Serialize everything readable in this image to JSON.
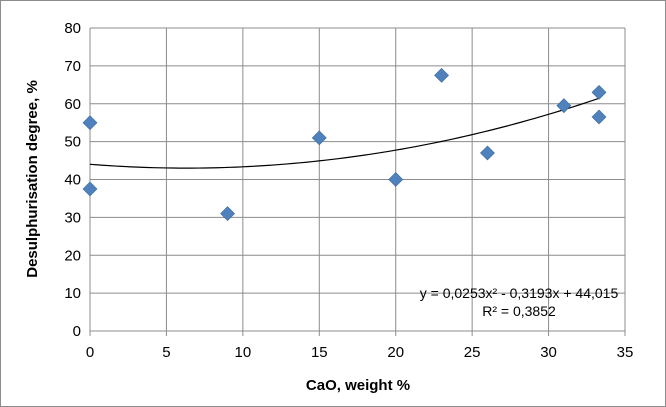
{
  "chart_data": {
    "type": "scatter",
    "xlabel": "CaO, weight %",
    "ylabel": "Desulphurisation degree, %",
    "xlim": [
      0,
      35
    ],
    "ylim": [
      0,
      80
    ],
    "x_ticks": [
      0,
      5,
      10,
      15,
      20,
      25,
      30,
      35
    ],
    "y_ticks": [
      0,
      10,
      20,
      30,
      40,
      50,
      60,
      70,
      80
    ],
    "grid": true,
    "marker_color": "#4f81bd",
    "trendline_color": "#000000",
    "series": [
      {
        "points": [
          {
            "x": 0,
            "y": 55
          },
          {
            "x": 0,
            "y": 37.5
          },
          {
            "x": 9,
            "y": 31
          },
          {
            "x": 15,
            "y": 51
          },
          {
            "x": 20,
            "y": 40
          },
          {
            "x": 23,
            "y": 67.5
          },
          {
            "x": 26,
            "y": 47
          },
          {
            "x": 31,
            "y": 59.5
          },
          {
            "x": 33.3,
            "y": 63
          },
          {
            "x": 33.3,
            "y": 56.5
          }
        ]
      }
    ],
    "trendline": {
      "type": "polynomial-2",
      "coefficients": {
        "a": 0.0253,
        "b": -0.3193,
        "c": 44.015
      },
      "x_range": [
        0,
        33.3
      ],
      "equation_label": "y = 0,0253x² - 0,3193x + 44,015",
      "r2_label": "R² = 0,3852"
    }
  }
}
